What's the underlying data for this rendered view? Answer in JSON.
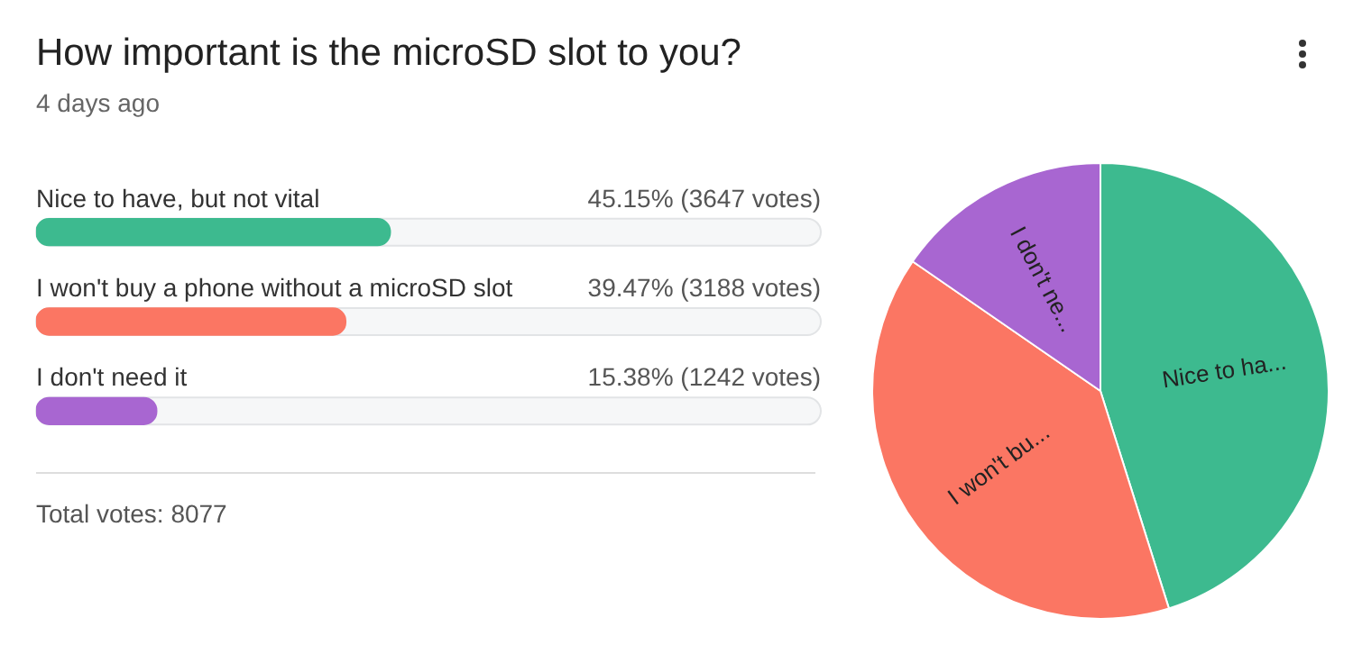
{
  "chart_data": [
    {
      "type": "bar",
      "orientation": "horizontal",
      "title": "How important is the microSD slot to you?",
      "subtitle": "4 days ago",
      "categories": [
        "Nice to have, but not vital",
        "I won't buy a phone without a microSD slot",
        "I don't need it"
      ],
      "values": [
        45.15,
        39.47,
        15.38
      ],
      "colors": [
        "#3dba8f",
        "#fb7663",
        "#a866d1"
      ],
      "value_labels": [
        "45.15% (3647 votes)",
        "39.47% (3188 votes)",
        "15.38% (1242 votes)"
      ],
      "xlim": [
        0,
        100
      ],
      "legend": false,
      "annotations": [
        "Total votes: 8077"
      ]
    },
    {
      "type": "pie",
      "categories": [
        "Nice to ha...",
        "I won't bu...",
        "I don't ne..."
      ],
      "values": [
        45.15,
        39.47,
        15.38
      ],
      "colors": [
        "#3dba8f",
        "#fb7663",
        "#a866d1"
      ],
      "legend": false
    }
  ]
}
